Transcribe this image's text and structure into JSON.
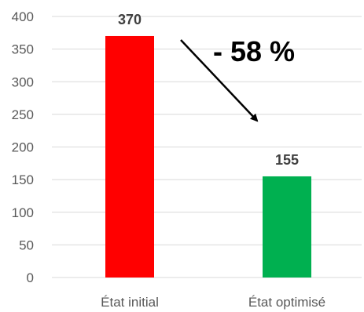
{
  "chart_data": {
    "type": "bar",
    "categories": [
      "État initial",
      "État optimisé"
    ],
    "values": [
      370,
      155
    ],
    "data_labels": [
      "370",
      "155"
    ],
    "colors": [
      "#ff0000",
      "#00b050"
    ],
    "ylim": [
      0,
      400
    ],
    "yticks": [
      0,
      50,
      100,
      150,
      200,
      250,
      300,
      350,
      400
    ],
    "grid": true,
    "title": "",
    "xlabel": "",
    "ylabel": "",
    "annotation": {
      "text": "- 58 %",
      "arrow": "from first bar down to second bar"
    }
  }
}
